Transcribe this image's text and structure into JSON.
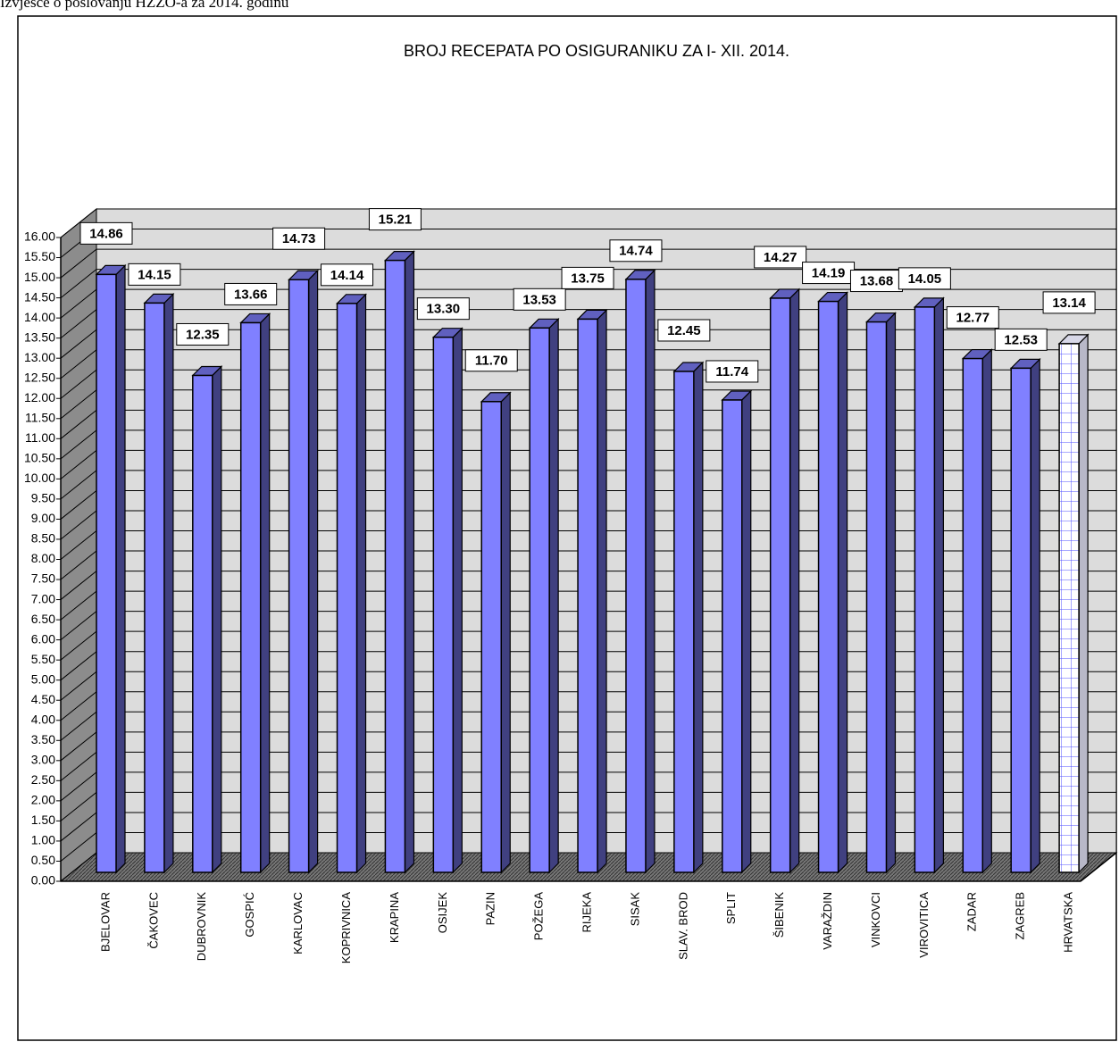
{
  "header": "Izvješće o poslovanju HZZO-a za 2014. godinu",
  "chart_data": {
    "type": "bar3d",
    "title": "BROJ RECEPATA PO OSIGURANIKU ZA  I- XII. 2014.",
    "categories": [
      "BJELOVAR",
      "ČAKOVEC",
      "DUBROVNIK",
      "GOSPIĆ",
      "KARLOVAC",
      "KOPRIVNICA",
      "KRAPINA",
      "OSIJEK",
      "PAZIN",
      "POŽEGA",
      "RIJEKA",
      "SISAK",
      "SLAV. BROD",
      "SPLIT",
      "ŠIBENIK",
      "VARAŽDIN",
      "VINKOVCI",
      "VIROVITICA",
      "ZADAR",
      "ZAGREB",
      "HRVATSKA"
    ],
    "values": [
      14.86,
      14.15,
      12.35,
      13.66,
      14.73,
      14.14,
      15.21,
      13.3,
      11.7,
      13.53,
      13.75,
      14.74,
      12.45,
      11.74,
      14.27,
      14.19,
      13.68,
      14.05,
      12.77,
      12.53,
      13.14
    ],
    "value_labels": [
      "14.86",
      "14.15",
      "12.35",
      "13.66",
      "14.73",
      "14.14",
      "15.21",
      "13.30",
      "11.70",
      "13.53",
      "13.75",
      "14.74",
      "12.45",
      "11.74",
      "14.27",
      "14.19",
      "13.68",
      "14.05",
      "12.77",
      "12.53",
      "13.14"
    ],
    "colors": [
      "#8080ff",
      "#8080ff",
      "#8080ff",
      "#8080ff",
      "#8080ff",
      "#8080ff",
      "#8080ff",
      "#8080ff",
      "#8080ff",
      "#8080ff",
      "#8080ff",
      "#8080ff",
      "#8080ff",
      "#8080ff",
      "#8080ff",
      "#8080ff",
      "#8080ff",
      "#8080ff",
      "#8080ff",
      "#8080ff",
      "#ffffff"
    ],
    "ylim": [
      0,
      16
    ],
    "yticks": [
      {
        "value": 0,
        "label": "0.00"
      },
      {
        "value": 0.5,
        "label": "0.50"
      },
      {
        "value": 1,
        "label": "1.00"
      },
      {
        "value": 1.5,
        "label": "1.50"
      },
      {
        "value": 2,
        "label": "2.00"
      },
      {
        "value": 2.5,
        "label": "2.50"
      },
      {
        "value": 3,
        "label": "3.00"
      },
      {
        "value": 3.5,
        "label": "3.50"
      },
      {
        "value": 4,
        "label": "4.00"
      },
      {
        "value": 4.5,
        "label": "4.50"
      },
      {
        "value": 5,
        "label": "5.00"
      },
      {
        "value": 5.5,
        "label": "5.50"
      },
      {
        "value": 6,
        "label": "6.00"
      },
      {
        "value": 6.5,
        "label": "6.50"
      },
      {
        "value": 7,
        "label": "7.00"
      },
      {
        "value": 7.5,
        "label": "7.50"
      },
      {
        "value": 8,
        "label": "8.00"
      },
      {
        "value": 8.5,
        "label": "8.50"
      },
      {
        "value": 9,
        "label": "9.00"
      },
      {
        "value": 9.5,
        "label": "9.50"
      },
      {
        "value": 10,
        "label": "10.00"
      },
      {
        "value": 10.5,
        "label": "10.50"
      },
      {
        "value": 11,
        "label": "11.00"
      },
      {
        "value": 11.5,
        "label": "11.50"
      },
      {
        "value": 12,
        "label": "12.00"
      },
      {
        "value": 12.5,
        "label": "12.50"
      },
      {
        "value": 13,
        "label": "13.00"
      },
      {
        "value": 13.5,
        "label": "13.50"
      },
      {
        "value": 14,
        "label": "14.00"
      },
      {
        "value": 14.5,
        "label": "14.50"
      },
      {
        "value": 15,
        "label": "15.00"
      },
      {
        "value": 15.5,
        "label": "15.50"
      },
      {
        "value": 16,
        "label": "16.00"
      }
    ],
    "grid": true
  }
}
